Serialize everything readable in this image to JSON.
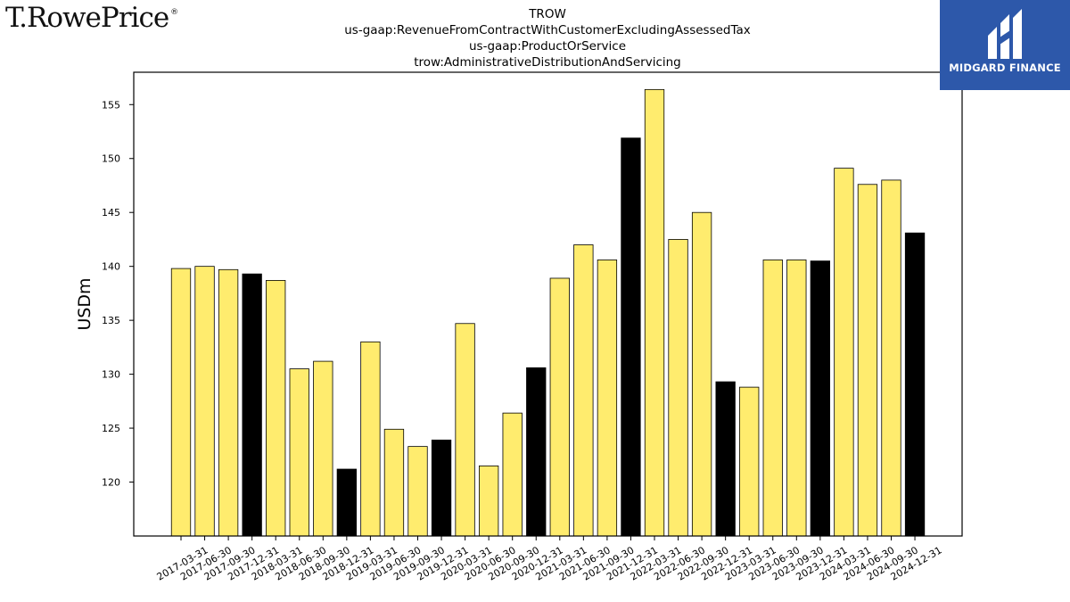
{
  "brand": {
    "logo_text": "T.RowePrice",
    "registered_mark": "®"
  },
  "watermark": {
    "caption": "MIDGARD FINANCE",
    "icon": "midgard-m-icon",
    "color": "#2d58aa"
  },
  "title_lines": [
    "TROW",
    "us-gaap:RevenueFromContractWithCustomerExcludingAssessedTax",
    "us-gaap:ProductOrService",
    "trow:AdministrativeDistributionAndServicing"
  ],
  "chart_data": {
    "type": "bar",
    "ylabel": "USDm",
    "ylim": [
      115,
      158
    ],
    "yticks": [
      120,
      125,
      130,
      135,
      140,
      145,
      150,
      155
    ],
    "grid": false,
    "bar_colors": {
      "quarter": "#ffec6e",
      "year_end": "#000000"
    },
    "categories": [
      "2017-03-31",
      "2017-06-30",
      "2017-09-30",
      "2017-12-31",
      "2018-03-31",
      "2018-06-30",
      "2018-09-30",
      "2018-12-31",
      "2019-03-31",
      "2019-06-30",
      "2019-09-30",
      "2019-12-31",
      "2020-03-31",
      "2020-06-30",
      "2020-09-30",
      "2020-12-31",
      "2021-03-31",
      "2021-06-30",
      "2021-09-30",
      "2021-12-31",
      "2022-03-31",
      "2022-06-30",
      "2022-09-30",
      "2022-12-31",
      "2023-03-31",
      "2023-06-30",
      "2023-09-30",
      "2023-12-31",
      "2024-03-31",
      "2024-06-30",
      "2024-09-30",
      "2024-12-31"
    ],
    "values": [
      139.8,
      140.0,
      139.7,
      139.3,
      138.7,
      130.5,
      131.2,
      121.2,
      133.0,
      124.9,
      123.3,
      123.9,
      134.7,
      121.5,
      126.4,
      130.6,
      138.9,
      142.0,
      140.6,
      151.9,
      156.4,
      142.5,
      145.0,
      129.3,
      128.8,
      140.6,
      140.6,
      140.5,
      149.1,
      147.6,
      148.0,
      143.1
    ],
    "year_end": [
      false,
      false,
      false,
      true,
      false,
      false,
      false,
      true,
      false,
      false,
      false,
      true,
      false,
      false,
      false,
      true,
      false,
      false,
      false,
      true,
      false,
      false,
      false,
      true,
      false,
      false,
      false,
      true,
      false,
      false,
      false,
      true
    ]
  }
}
